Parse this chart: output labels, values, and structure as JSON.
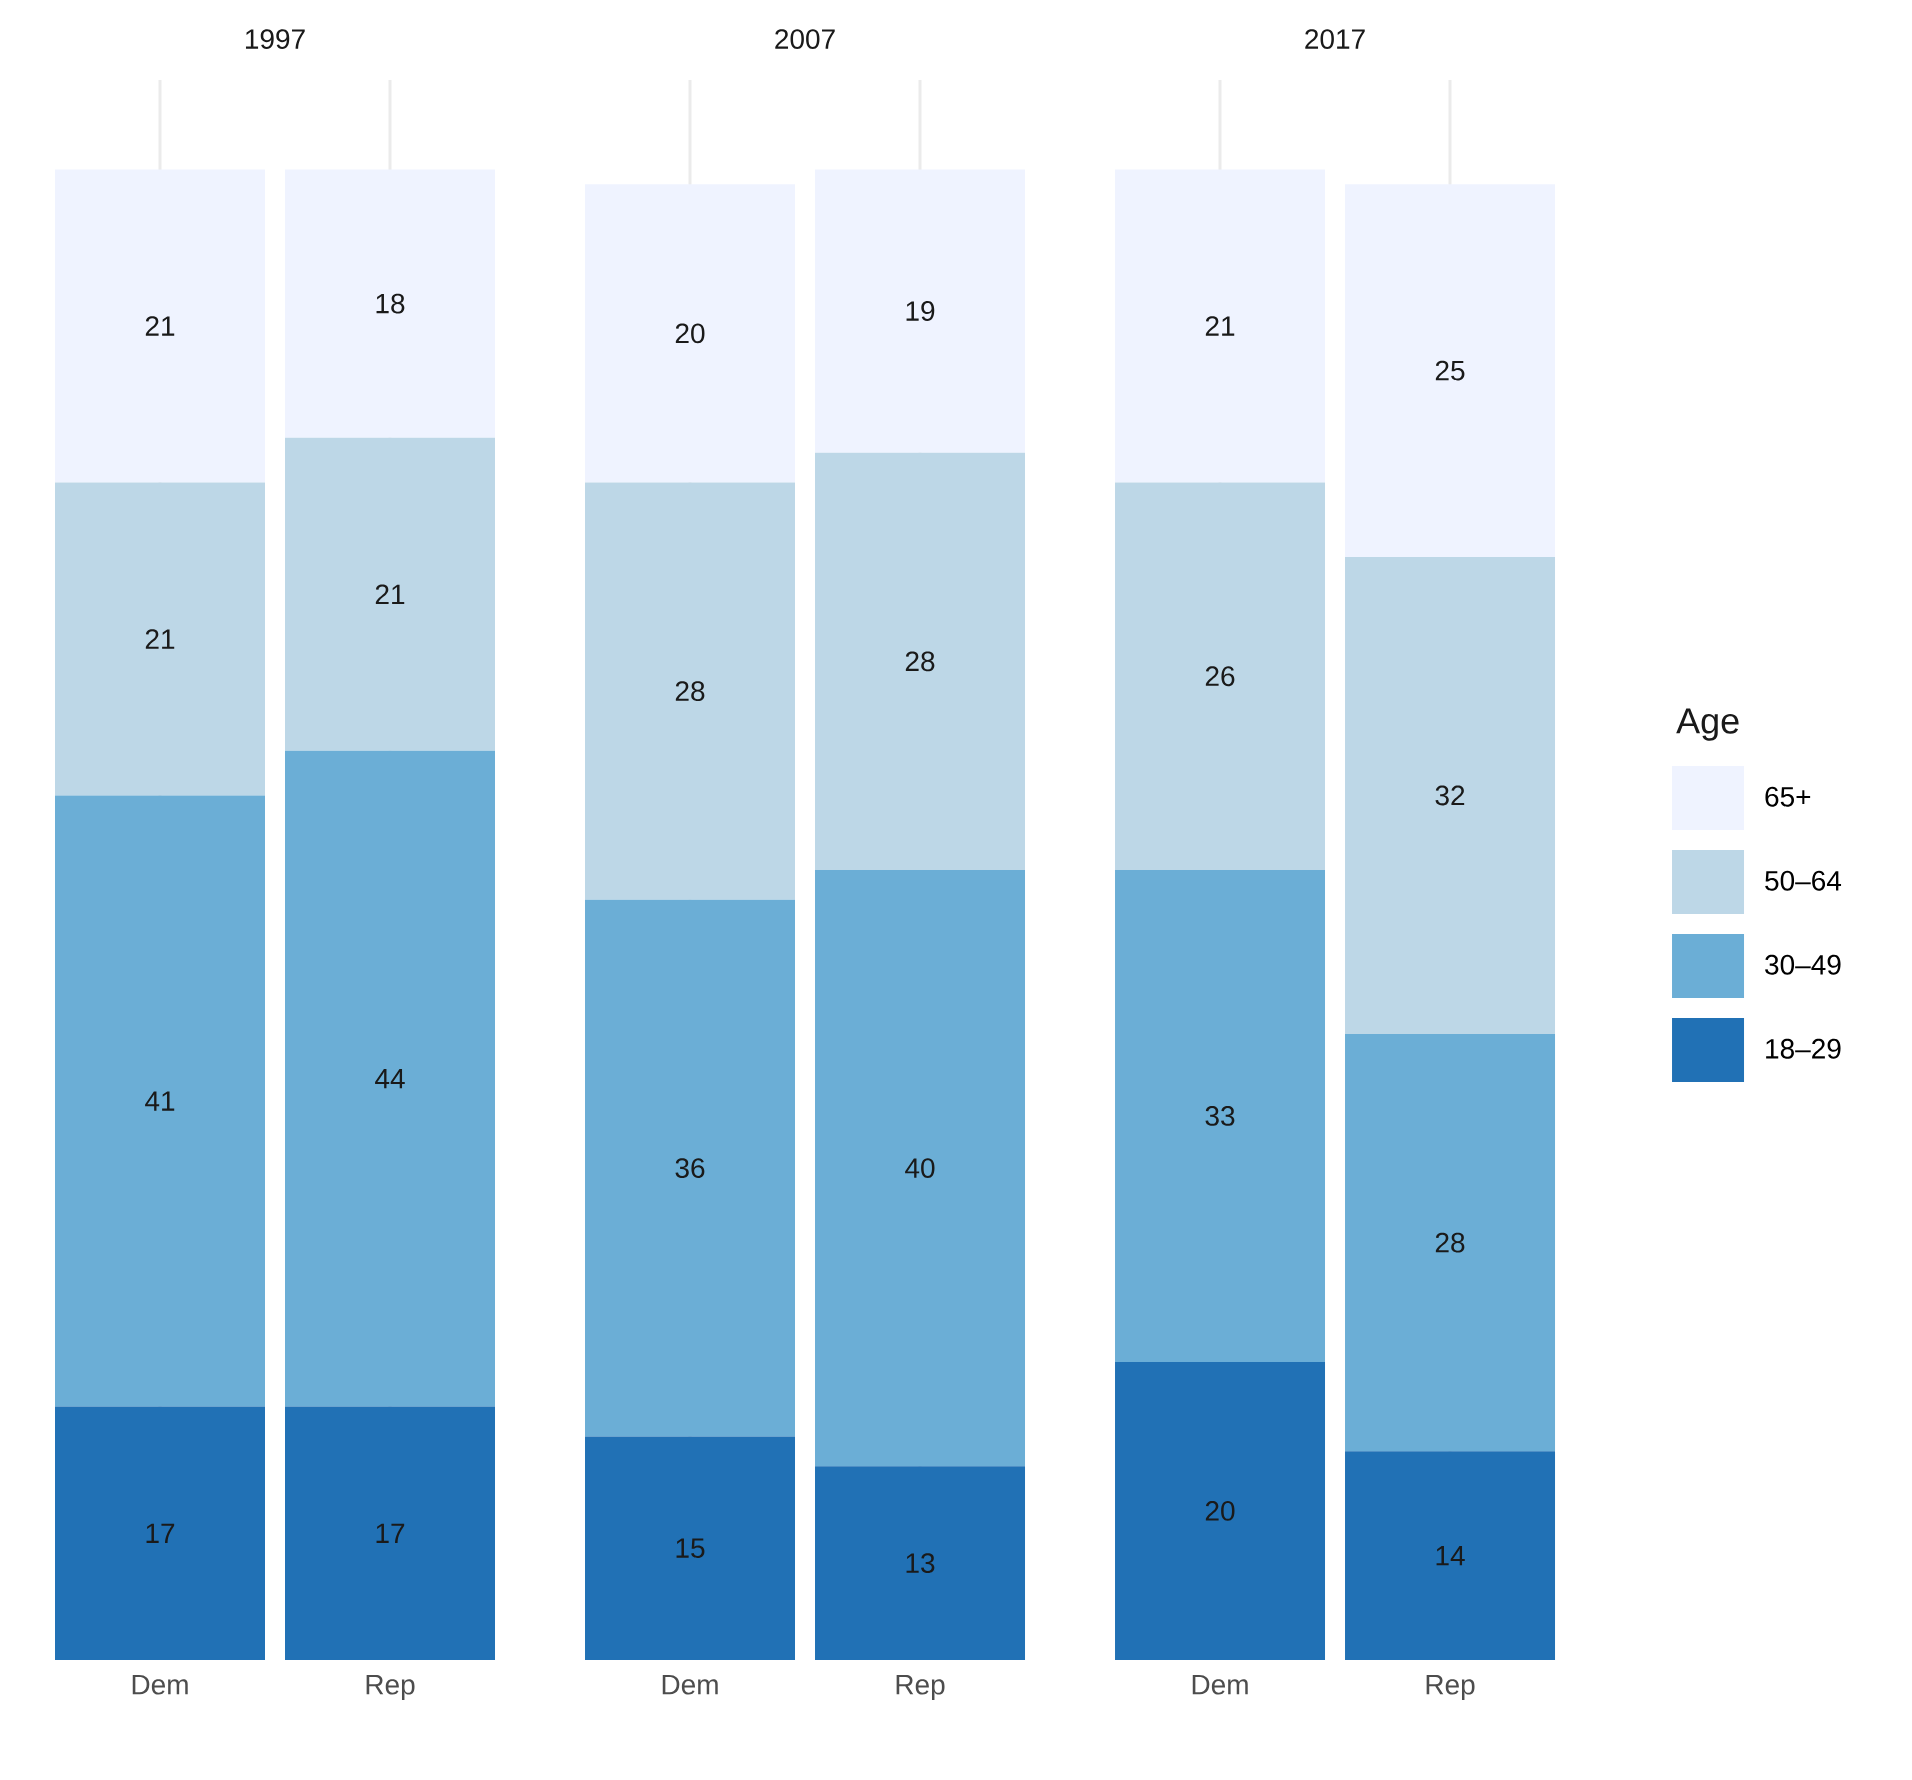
{
  "chart_data": [
    {
      "type": "bar",
      "stacked": true,
      "title": "1997",
      "categories": [
        "Dem",
        "Rep"
      ],
      "grid": "x",
      "data_labels": true,
      "series": [
        {
          "color": "#2171b5",
          "values": [
            17,
            17
          ]
        },
        {
          "color": "#6baed6",
          "values": [
            41,
            44
          ]
        },
        {
          "color": "#bdd7e7",
          "values": [
            21,
            21
          ]
        },
        {
          "color": "#eff3ff",
          "values": [
            21,
            18
          ]
        }
      ]
    },
    {
      "type": "bar",
      "stacked": true,
      "title": "2007",
      "categories": [
        "Dem",
        "Rep"
      ],
      "grid": "x",
      "data_labels": true,
      "series": [
        {
          "color": "#2171b5",
          "values": [
            15,
            13
          ]
        },
        {
          "color": "#6baed6",
          "values": [
            36,
            40
          ]
        },
        {
          "color": "#bdd7e7",
          "values": [
            28,
            28
          ]
        },
        {
          "color": "#eff3ff",
          "values": [
            20,
            19
          ]
        }
      ]
    },
    {
      "type": "bar",
      "stacked": true,
      "title": "2017",
      "categories": [
        "Dem",
        "Rep"
      ],
      "grid": "x",
      "data_labels": true,
      "legend": "right",
      "legend_title": "Age",
      "series": [
        {
          "name": "18–29",
          "color": "#2171b5",
          "values": [
            20,
            14
          ]
        },
        {
          "name": "30–49",
          "color": "#6baed6",
          "values": [
            33,
            28
          ]
        },
        {
          "name": "50–64",
          "color": "#bdd7e7",
          "values": [
            26,
            32
          ]
        },
        {
          "name": "65+",
          "color": "#eff3ff",
          "values": [
            21,
            25
          ]
        }
      ]
    }
  ]
}
